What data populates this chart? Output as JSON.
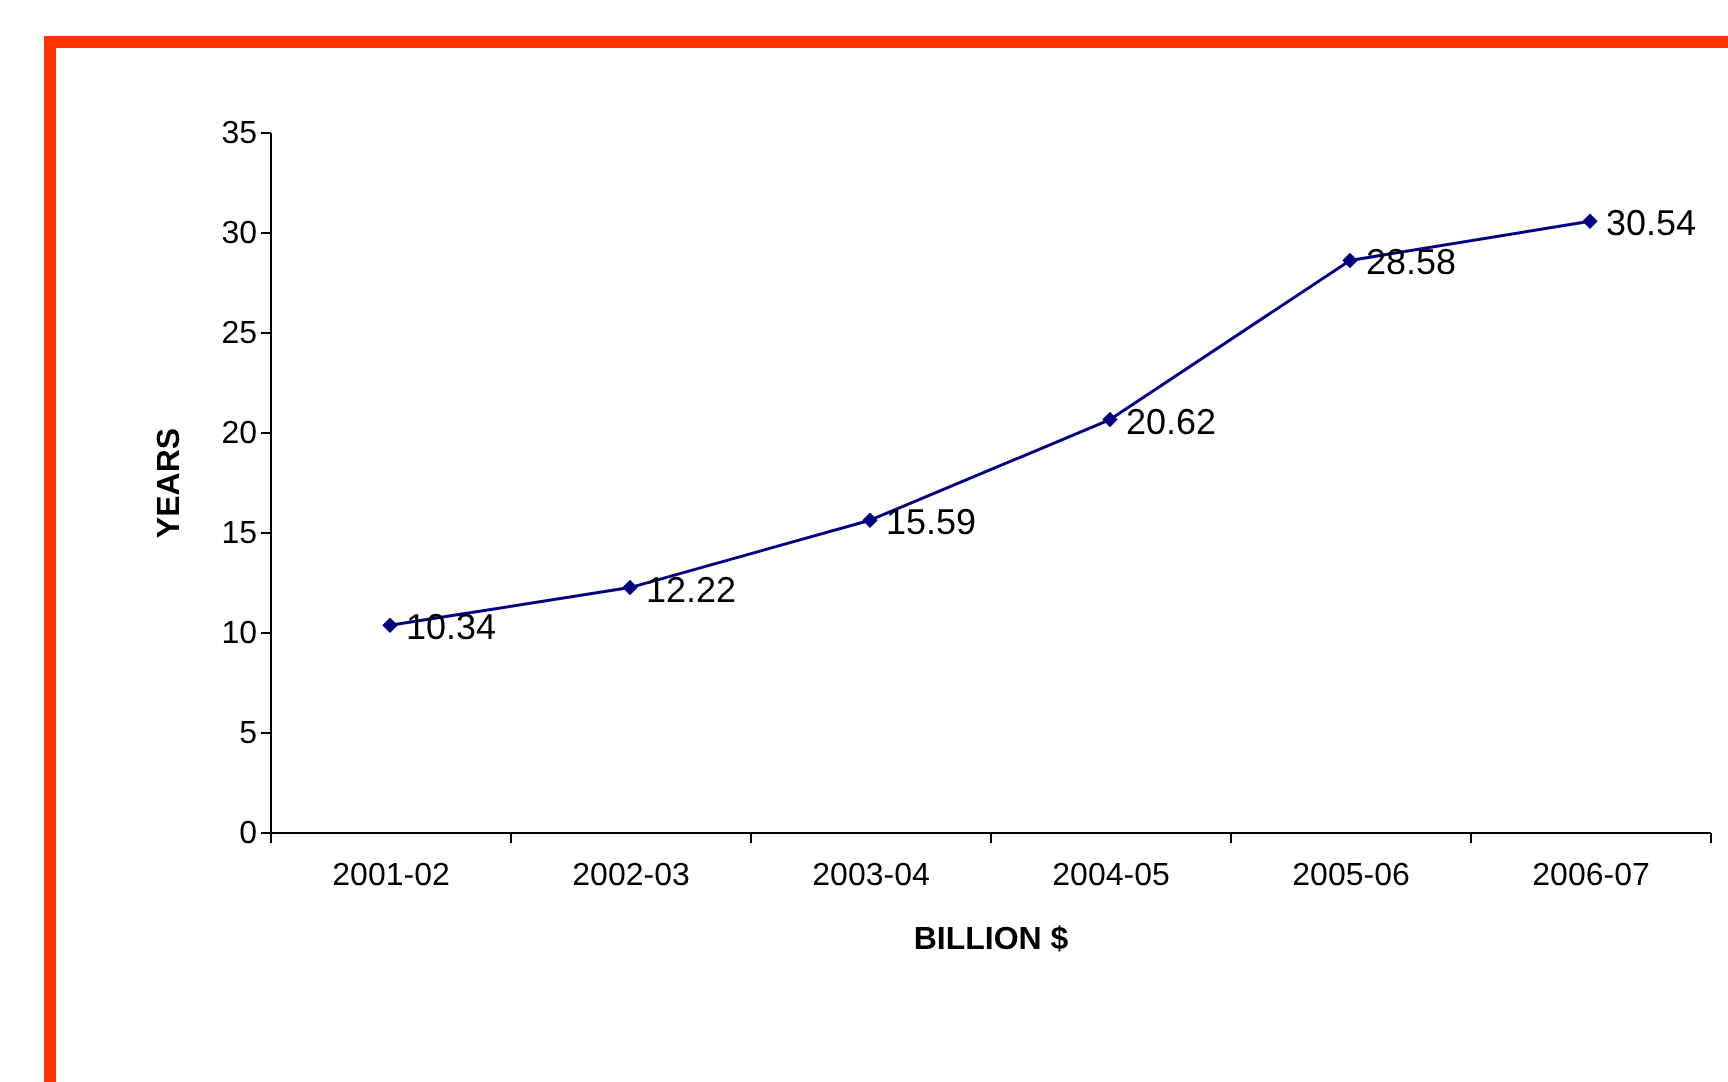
{
  "chart_data": {
    "type": "line",
    "xlabel": "BILLION $",
    "ylabel": "YEARS",
    "categories": [
      "2001-02",
      "2002-03",
      "2003-04",
      "2004-05",
      "2005-06",
      "2006-07"
    ],
    "series": [
      {
        "color": "#000080",
        "values": [
          10.34,
          12.22,
          15.59,
          20.62,
          28.58,
          30.54
        ]
      }
    ],
    "ylim": [
      0,
      35
    ],
    "yticks": [
      0,
      5,
      10,
      15,
      20,
      25,
      30,
      35
    ],
    "grid": false,
    "legend": false,
    "marker": "diamond",
    "data_labels": true
  }
}
